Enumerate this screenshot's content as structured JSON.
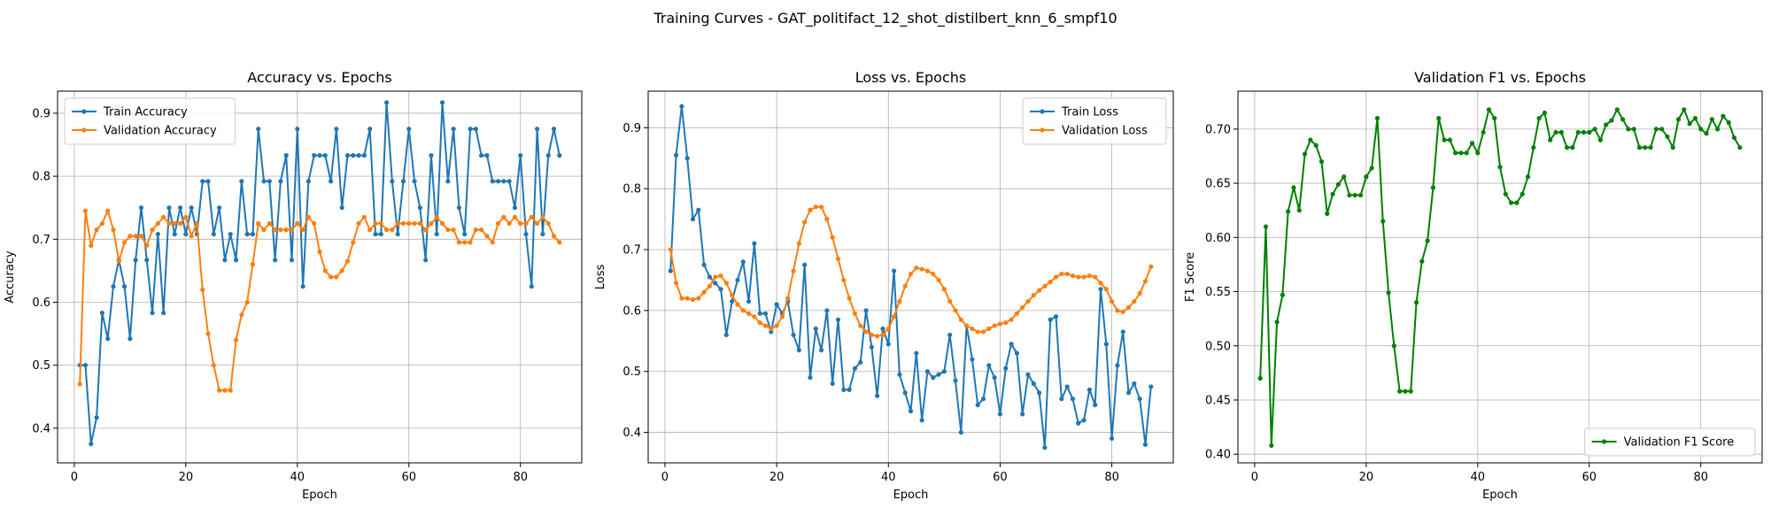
{
  "suptitle": "Training Curves - GAT_politifact_12_shot_distilbert_knn_6_smpf10",
  "chart_data": [
    {
      "type": "line",
      "title": "Accuracy vs. Epochs",
      "xlabel": "Epoch",
      "ylabel": "Accuracy",
      "xlim": [
        -3,
        91
      ],
      "ylim": [
        0.345,
        0.935
      ],
      "xticks": [
        0,
        20,
        40,
        60,
        80
      ],
      "yticks": [
        0.4,
        0.5,
        0.6,
        0.7,
        0.8,
        0.9
      ],
      "grid": true,
      "legend": "top-left",
      "series": [
        {
          "name": "Train Accuracy",
          "color": "#1f77b4",
          "values": [
            0.5,
            0.5,
            0.375,
            0.417,
            0.583,
            0.542,
            0.625,
            0.667,
            0.625,
            0.542,
            0.667,
            0.75,
            0.667,
            0.583,
            0.708,
            0.583,
            0.75,
            0.708,
            0.75,
            0.708,
            0.75,
            0.708,
            0.792,
            0.792,
            0.708,
            0.75,
            0.667,
            0.708,
            0.667,
            0.792,
            0.708,
            0.708,
            0.875,
            0.792,
            0.792,
            0.667,
            0.792,
            0.833,
            0.667,
            0.875,
            0.625,
            0.792,
            0.833,
            0.833,
            0.833,
            0.792,
            0.875,
            0.75,
            0.833,
            0.833,
            0.833,
            0.833,
            0.875,
            0.708,
            0.708,
            0.917,
            0.792,
            0.708,
            0.792,
            0.875,
            0.792,
            0.75,
            0.667,
            0.833,
            0.708,
            0.917,
            0.792,
            0.875,
            0.75,
            0.708,
            0.875,
            0.875,
            0.833,
            0.833,
            0.792,
            0.792,
            0.792,
            0.792,
            0.75,
            0.833,
            0.708,
            0.625,
            0.875,
            0.708,
            0.833,
            0.875,
            0.833
          ]
        },
        {
          "name": "Validation Accuracy",
          "color": "#ff7f0e",
          "values": [
            0.47,
            0.745,
            0.69,
            0.715,
            0.725,
            0.745,
            0.715,
            0.665,
            0.695,
            0.705,
            0.705,
            0.705,
            0.69,
            0.715,
            0.725,
            0.735,
            0.725,
            0.725,
            0.725,
            0.735,
            0.705,
            0.725,
            0.62,
            0.55,
            0.5,
            0.46,
            0.46,
            0.46,
            0.54,
            0.58,
            0.6,
            0.66,
            0.725,
            0.715,
            0.725,
            0.715,
            0.715,
            0.715,
            0.715,
            0.725,
            0.715,
            0.735,
            0.725,
            0.68,
            0.65,
            0.64,
            0.64,
            0.65,
            0.665,
            0.695,
            0.725,
            0.735,
            0.715,
            0.725,
            0.725,
            0.715,
            0.715,
            0.725,
            0.725,
            0.725,
            0.725,
            0.725,
            0.715,
            0.725,
            0.735,
            0.725,
            0.715,
            0.715,
            0.695,
            0.695,
            0.695,
            0.715,
            0.715,
            0.705,
            0.695,
            0.725,
            0.735,
            0.725,
            0.735,
            0.725,
            0.725,
            0.735,
            0.725,
            0.735,
            0.725,
            0.705,
            0.695
          ]
        }
      ]
    },
    {
      "type": "line",
      "title": "Loss vs. Epochs",
      "xlabel": "Epoch",
      "ylabel": "Loss",
      "xlim": [
        -3,
        91
      ],
      "ylim": [
        0.35,
        0.96
      ],
      "xticks": [
        0,
        20,
        40,
        60,
        80
      ],
      "yticks": [
        0.4,
        0.5,
        0.6,
        0.7,
        0.8,
        0.9
      ],
      "grid": true,
      "legend": "top-right",
      "series": [
        {
          "name": "Train Loss",
          "color": "#1f77b4",
          "values": [
            0.665,
            0.855,
            0.935,
            0.85,
            0.75,
            0.765,
            0.675,
            0.655,
            0.645,
            0.635,
            0.56,
            0.615,
            0.65,
            0.68,
            0.615,
            0.71,
            0.595,
            0.595,
            0.565,
            0.61,
            0.595,
            0.615,
            0.56,
            0.535,
            0.675,
            0.49,
            0.57,
            0.535,
            0.6,
            0.48,
            0.585,
            0.47,
            0.47,
            0.505,
            0.515,
            0.6,
            0.54,
            0.46,
            0.57,
            0.545,
            0.665,
            0.495,
            0.465,
            0.435,
            0.53,
            0.42,
            0.5,
            0.49,
            0.495,
            0.5,
            0.56,
            0.485,
            0.4,
            0.575,
            0.52,
            0.445,
            0.455,
            0.51,
            0.49,
            0.43,
            0.505,
            0.545,
            0.53,
            0.43,
            0.495,
            0.48,
            0.465,
            0.375,
            0.585,
            0.59,
            0.455,
            0.475,
            0.455,
            0.415,
            0.42,
            0.47,
            0.445,
            0.635,
            0.545,
            0.39,
            0.51,
            0.565,
            0.465,
            0.48,
            0.455,
            0.38,
            0.475
          ]
        },
        {
          "name": "Validation Loss",
          "color": "#ff7f0e",
          "values": [
            0.7,
            0.645,
            0.62,
            0.62,
            0.618,
            0.62,
            0.63,
            0.64,
            0.655,
            0.657,
            0.645,
            0.625,
            0.61,
            0.6,
            0.595,
            0.59,
            0.58,
            0.575,
            0.57,
            0.575,
            0.59,
            0.62,
            0.665,
            0.71,
            0.745,
            0.765,
            0.77,
            0.77,
            0.75,
            0.72,
            0.685,
            0.65,
            0.62,
            0.595,
            0.575,
            0.565,
            0.56,
            0.558,
            0.56,
            0.57,
            0.59,
            0.615,
            0.64,
            0.66,
            0.67,
            0.668,
            0.665,
            0.66,
            0.65,
            0.635,
            0.615,
            0.6,
            0.585,
            0.575,
            0.57,
            0.565,
            0.565,
            0.57,
            0.575,
            0.578,
            0.58,
            0.585,
            0.595,
            0.605,
            0.615,
            0.625,
            0.633,
            0.64,
            0.647,
            0.655,
            0.66,
            0.66,
            0.657,
            0.655,
            0.655,
            0.657,
            0.655,
            0.645,
            0.635,
            0.615,
            0.6,
            0.598,
            0.605,
            0.615,
            0.628,
            0.648,
            0.672
          ]
        }
      ]
    },
    {
      "type": "line",
      "title": "Validation F1 vs. Epochs",
      "xlabel": "Epoch",
      "ylabel": "F1 Score",
      "xlim": [
        -3,
        91
      ],
      "ylim": [
        0.392,
        0.735
      ],
      "xticks": [
        0,
        20,
        40,
        60,
        80
      ],
      "yticks": [
        0.4,
        0.45,
        0.5,
        0.55,
        0.6,
        0.65,
        0.7
      ],
      "grid": true,
      "legend": "bottom-right",
      "series": [
        {
          "name": "Validation F1 Score",
          "color": "#008000",
          "values": [
            0.47,
            0.61,
            0.408,
            0.522,
            0.547,
            0.624,
            0.646,
            0.625,
            0.677,
            0.69,
            0.685,
            0.67,
            0.622,
            0.64,
            0.649,
            0.656,
            0.639,
            0.639,
            0.639,
            0.656,
            0.664,
            0.71,
            0.615,
            0.549,
            0.5,
            0.458,
            0.458,
            0.458,
            0.54,
            0.578,
            0.597,
            0.646,
            0.71,
            0.69,
            0.69,
            0.678,
            0.678,
            0.678,
            0.687,
            0.678,
            0.697,
            0.718,
            0.71,
            0.665,
            0.64,
            0.632,
            0.632,
            0.64,
            0.656,
            0.683,
            0.71,
            0.715,
            0.69,
            0.697,
            0.697,
            0.683,
            0.683,
            0.697,
            0.697,
            0.697,
            0.7,
            0.69,
            0.704,
            0.708,
            0.718,
            0.709,
            0.7,
            0.7,
            0.683,
            0.683,
            0.683,
            0.7,
            0.7,
            0.693,
            0.683,
            0.709,
            0.718,
            0.705,
            0.71,
            0.7,
            0.696,
            0.709,
            0.7,
            0.712,
            0.706,
            0.692,
            0.683
          ]
        }
      ]
    }
  ]
}
